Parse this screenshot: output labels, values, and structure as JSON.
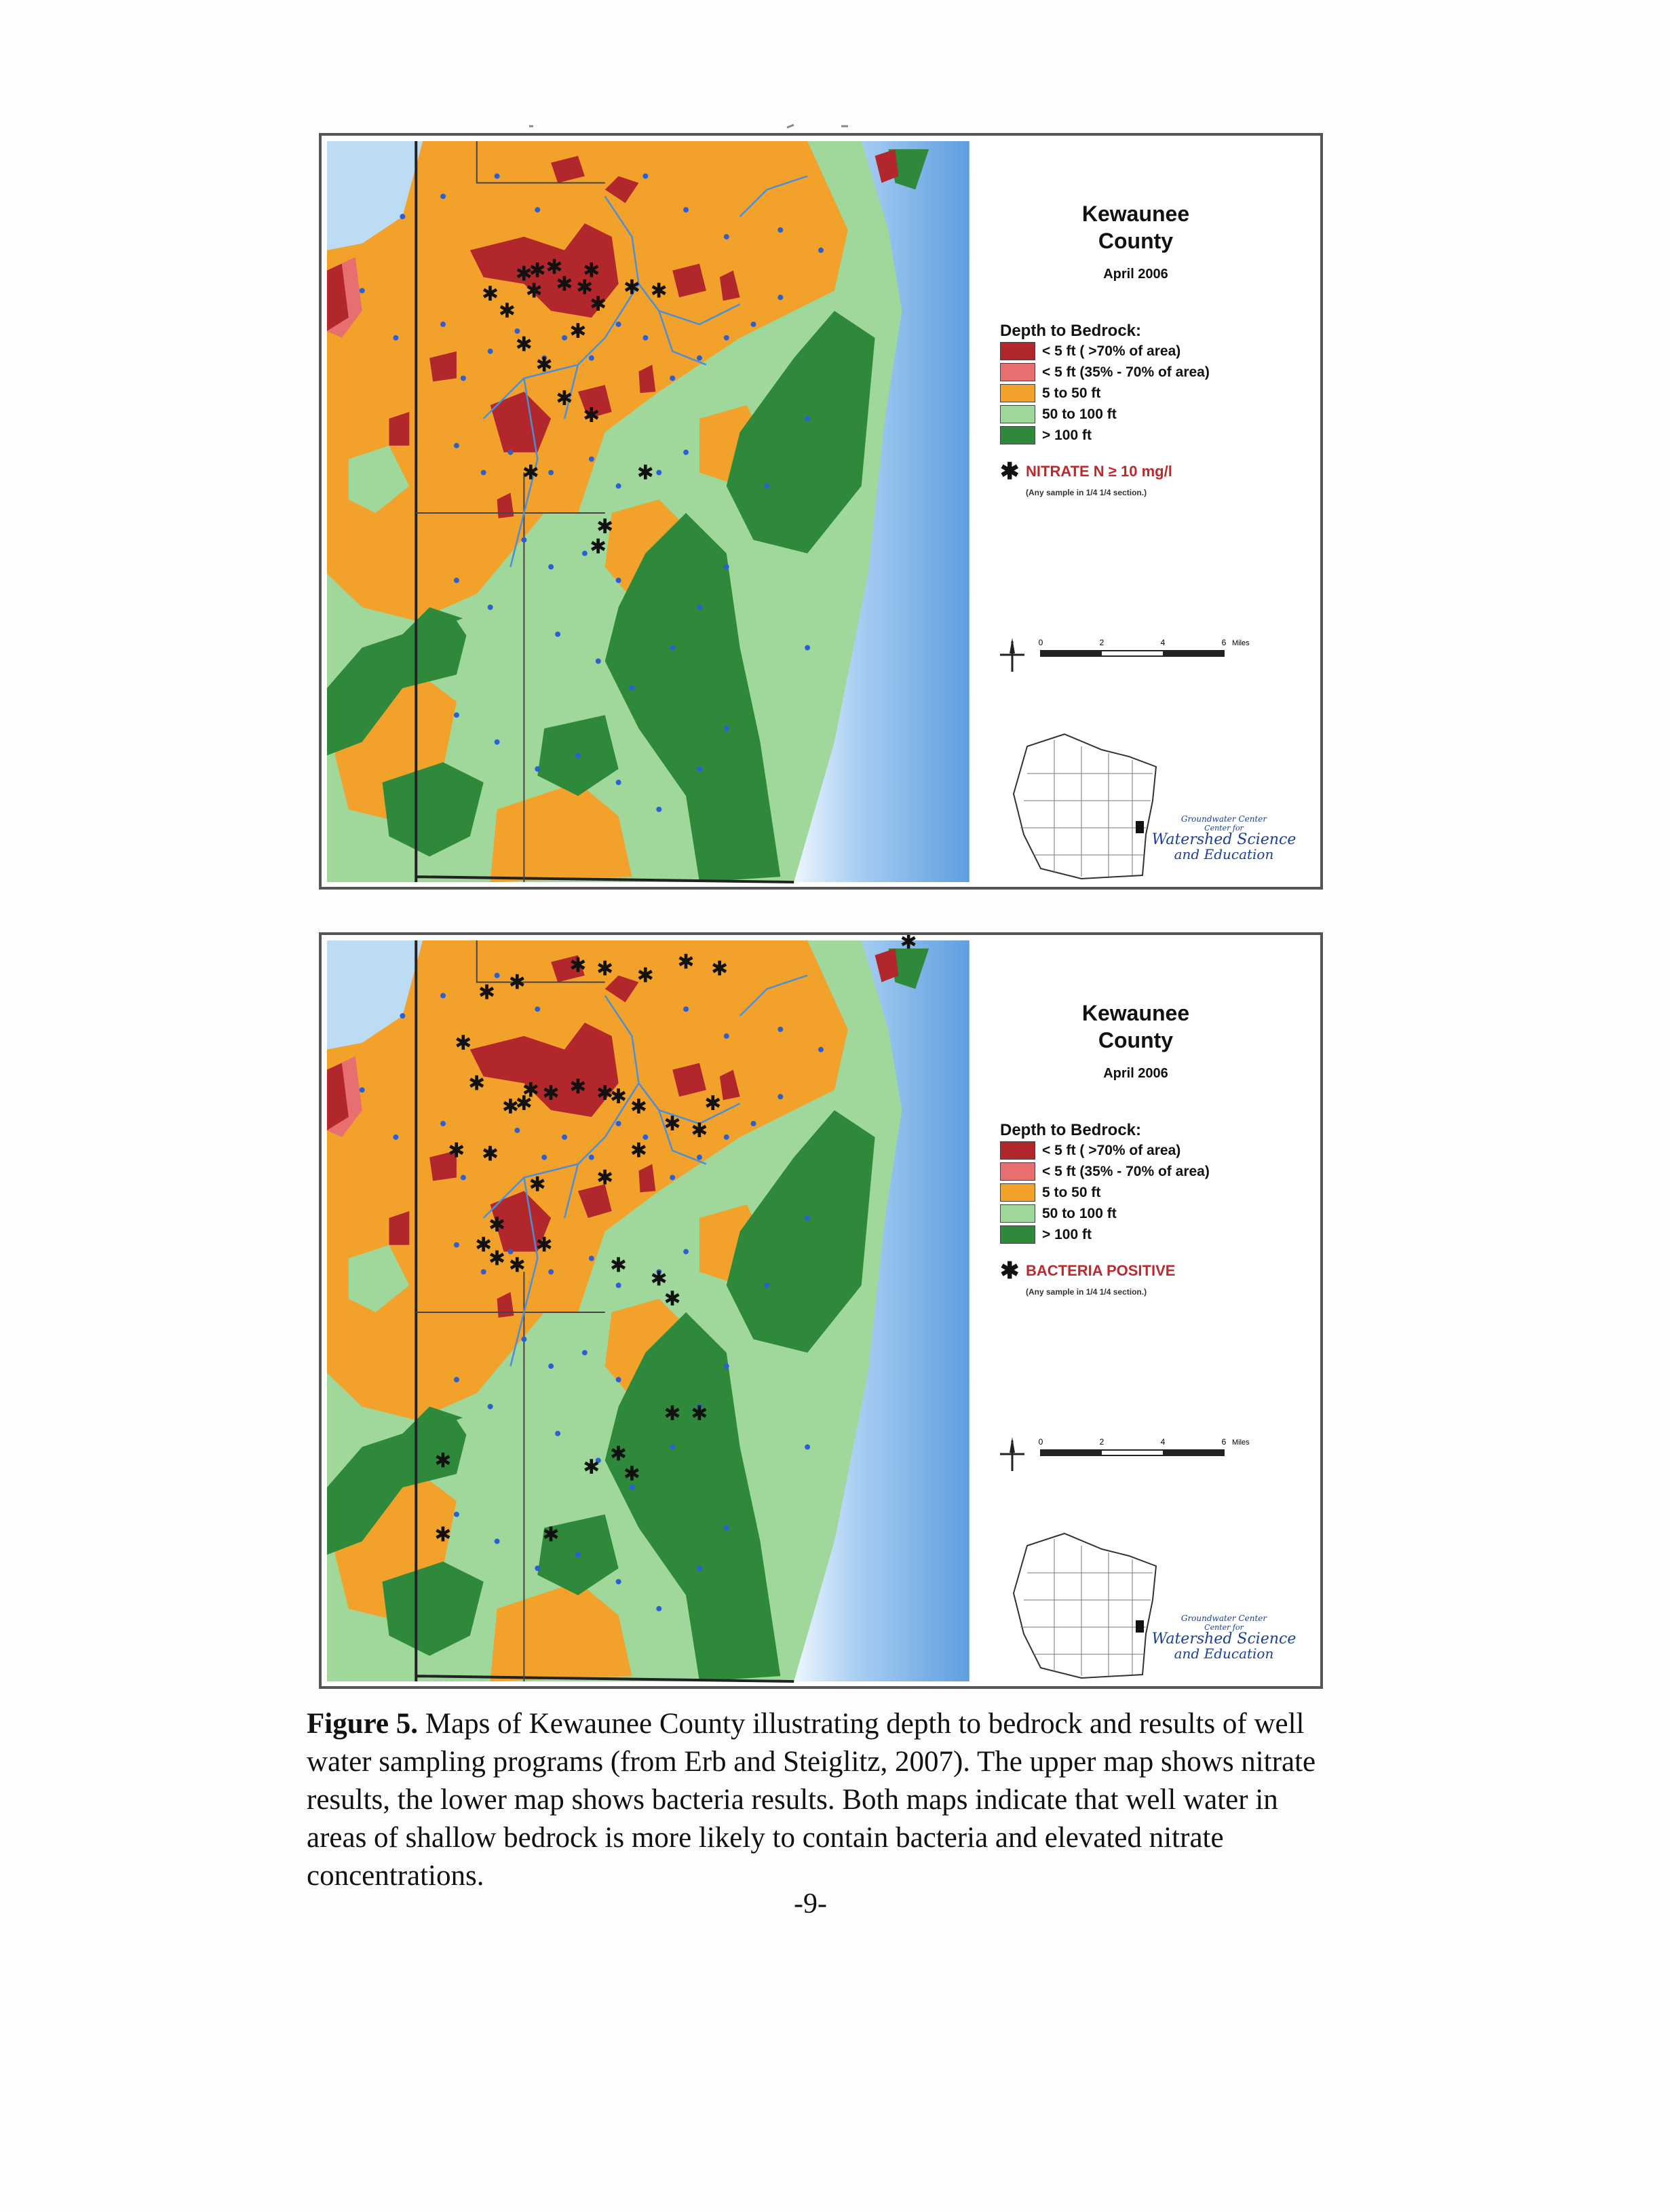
{
  "maps": [
    {
      "id": "nitrate",
      "county_title": "Kewaunee\nCounty",
      "date": "April 2006",
      "legend_title": "Depth to Bedrock:",
      "legend": [
        {
          "label": "< 5 ft ( >70% of area)",
          "color": "#b2272c"
        },
        {
          "label": "< 5 ft (35% - 70% of area)",
          "color": "#e76f6f"
        },
        {
          "label": "5 to 50 ft",
          "color": "#f2a12b"
        },
        {
          "label": "50 to 100 ft",
          "color": "#9fd89a"
        },
        {
          "label": "> 100 ft",
          "color": "#2e8a3a"
        }
      ],
      "marker_label": "NITRATE N ≥ 10 mg/l",
      "marker_note": "(Any sample in 1/4 1/4 section.)"
    },
    {
      "id": "bacteria",
      "county_title": "Kewaunee\nCounty",
      "date": "April 2006",
      "legend_title": "Depth to Bedrock:",
      "legend": [
        {
          "label": "< 5 ft ( >70% of area)",
          "color": "#b2272c"
        },
        {
          "label": "< 5 ft (35% - 70% of area)",
          "color": "#e76f6f"
        },
        {
          "label": "5 to 50 ft",
          "color": "#f2a12b"
        },
        {
          "label": "50 to 100 ft",
          "color": "#9fd89a"
        },
        {
          "label": "> 100 ft",
          "color": "#2e8a3a"
        }
      ],
      "marker_label": "BACTERIA POSITIVE",
      "marker_note": "(Any sample in 1/4 1/4 section.)"
    }
  ],
  "scale": {
    "ticks": [
      "0",
      "2",
      "4",
      "6"
    ],
    "unit": "Miles"
  },
  "credit": {
    "line1": "Groundwater Center",
    "line2": "Center for",
    "line3": "Watershed Science",
    "line4": "and Education"
  },
  "caption": {
    "label": "Figure 5.",
    "text": " Maps of Kewaunee County illustrating depth to bedrock and results of well water sampling programs (from Erb and Steiglitz, 2007). The upper map shows nitrate results, the lower map shows bacteria results. Both maps indicate that well water in areas of shallow bedrock is more likely to contain bacteria and elevated nitrate concentrations."
  },
  "page_number": "-9-",
  "colors": {
    "lake": "#7fb6e8",
    "lake_edge": "#cfe5f7",
    "well_dot": "#2a5fd6",
    "roads": "#3a3a3a"
  }
}
